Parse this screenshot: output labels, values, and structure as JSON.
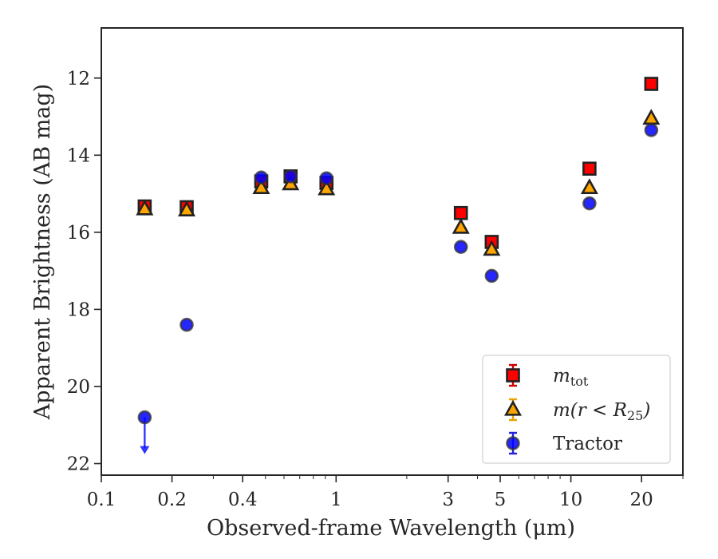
{
  "chart_data": {
    "type": "scatter",
    "title": "",
    "xlabel": "Observed-frame Wavelength (μm)",
    "ylabel": "Apparent Brightness (AB mag)",
    "xscale": "log",
    "xlim": [
      0.1,
      30
    ],
    "ylim": [
      22.3,
      10.7
    ],
    "y_inverted": true,
    "x_ticks": [
      {
        "value": 0.1,
        "label": "0.1"
      },
      {
        "value": 0.2,
        "label": "0.2"
      },
      {
        "value": 0.4,
        "label": "0.4"
      },
      {
        "value": 1,
        "label": "1"
      },
      {
        "value": 3,
        "label": "3"
      },
      {
        "value": 5,
        "label": "5"
      },
      {
        "value": 10,
        "label": "10"
      },
      {
        "value": 20,
        "label": "20"
      }
    ],
    "y_ticks": [
      {
        "value": 12,
        "label": "12"
      },
      {
        "value": 14,
        "label": "14"
      },
      {
        "value": 16,
        "label": "16"
      },
      {
        "value": 18,
        "label": "18"
      },
      {
        "value": 20,
        "label": "20"
      },
      {
        "value": 22,
        "label": "22"
      }
    ],
    "grid": false,
    "legend_position": "lower-right",
    "series": [
      {
        "name": "m_tot",
        "legend_main": "m",
        "legend_sub": "tot",
        "marker": "square",
        "color": "#ff0000",
        "errorbar_color": "#cc0000",
        "points": [
          {
            "x": 0.153,
            "y": 15.33
          },
          {
            "x": 0.231,
            "y": 15.35
          },
          {
            "x": 0.48,
            "y": 14.68
          },
          {
            "x": 0.64,
            "y": 14.55
          },
          {
            "x": 0.91,
            "y": 14.72
          },
          {
            "x": 3.4,
            "y": 15.5
          },
          {
            "x": 4.6,
            "y": 16.25
          },
          {
            "x": 12.0,
            "y": 14.35
          },
          {
            "x": 22.0,
            "y": 12.15
          }
        ]
      },
      {
        "name": "m(r < R_25)",
        "legend_main": "m(r < R",
        "legend_sub": "25",
        "legend_end": ")",
        "marker": "triangle",
        "color": "#ffa500",
        "errorbar_color": "#e8a200",
        "points": [
          {
            "x": 0.153,
            "y": 15.4
          },
          {
            "x": 0.231,
            "y": 15.43
          },
          {
            "x": 0.48,
            "y": 14.85
          },
          {
            "x": 0.64,
            "y": 14.75
          },
          {
            "x": 0.91,
            "y": 14.88
          },
          {
            "x": 3.4,
            "y": 15.88
          },
          {
            "x": 4.6,
            "y": 16.45
          },
          {
            "x": 12.0,
            "y": 14.85
          },
          {
            "x": 22.0,
            "y": 13.05
          }
        ]
      },
      {
        "name": "Tractor",
        "legend_main": "Tractor",
        "marker": "circle",
        "color": "#0000ff",
        "errorbar_color": "#2222dd",
        "points": [
          {
            "x": 0.153,
            "y": 20.8,
            "upper_limit": true
          },
          {
            "x": 0.231,
            "y": 18.4
          },
          {
            "x": 0.48,
            "y": 14.58
          },
          {
            "x": 0.64,
            "y": 14.55
          },
          {
            "x": 0.91,
            "y": 14.6
          },
          {
            "x": 3.4,
            "y": 16.38
          },
          {
            "x": 4.6,
            "y": 17.13
          },
          {
            "x": 12.0,
            "y": 15.25
          },
          {
            "x": 22.0,
            "y": 13.35
          }
        ]
      }
    ]
  }
}
